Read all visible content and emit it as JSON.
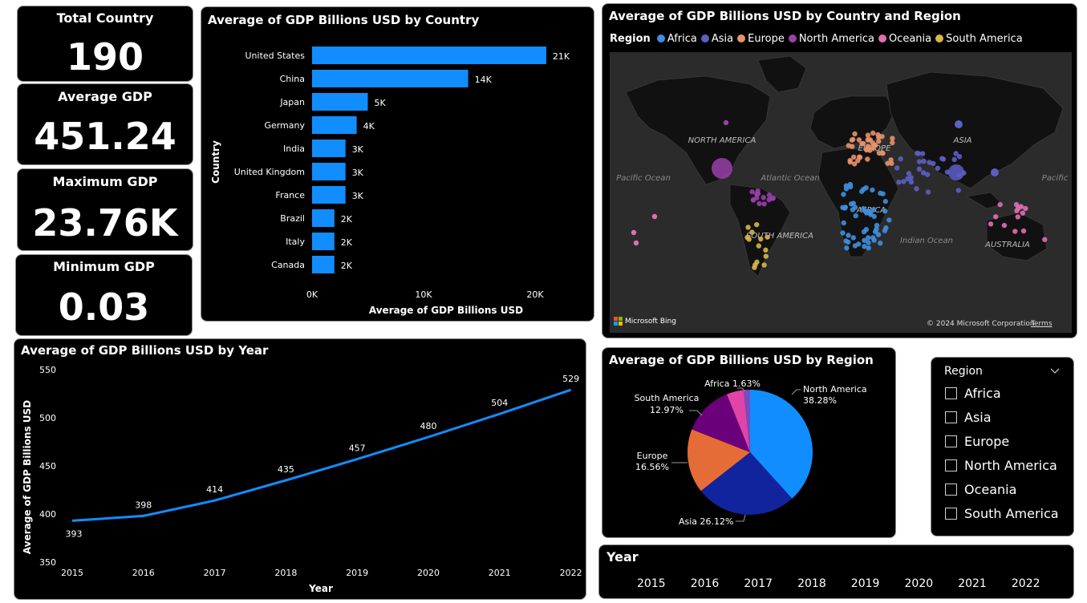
{
  "cards": [
    {
      "title": "Total Country",
      "value": "190"
    },
    {
      "title": "Average GDP",
      "value": "451.24"
    },
    {
      "title": "Maximum GDP",
      "value": "23.76K"
    },
    {
      "title": "Minimum GDP",
      "value": "0.03"
    }
  ],
  "bar_visual": {
    "title": "Average of GDP Billions USD by Country"
  },
  "map_visual": {
    "title": "Average of GDP Billions USD by Country and Region",
    "legend_title": "Region",
    "legend": [
      {
        "name": "Africa",
        "color": "#3f8fdf"
      },
      {
        "name": "Asia",
        "color": "#5c5fc4"
      },
      {
        "name": "Europe",
        "color": "#e8916a"
      },
      {
        "name": "North America",
        "color": "#9a3fa8"
      },
      {
        "name": "Oceania",
        "color": "#e06fb0"
      },
      {
        "name": "South America",
        "color": "#d9b54a"
      }
    ],
    "labels": {
      "north_america": "NORTH AMERICA",
      "south_america": "SOUTH AMERICA",
      "asia": "ASIA",
      "australia": "AUSTRALIA",
      "africa": "AFRICA",
      "europe": "EUROPE",
      "pacific_left": "Pacific Ocean",
      "pacific_right": "Pacific",
      "atlantic": "Atlantic Ocean",
      "indian": "Indian Ocean"
    },
    "bing": "Microsoft Bing",
    "copyright": "© 2024 Microsoft Corporation",
    "terms": "Terms"
  },
  "line_visual": {
    "title": "Average of GDP Billions USD by Year"
  },
  "pie_visual": {
    "title": "Average of GDP Billions USD by Region"
  },
  "region_slicer": {
    "title": "Region",
    "items": [
      "Africa",
      "Asia",
      "Europe",
      "North America",
      "Oceania",
      "South America"
    ]
  },
  "year_slicer": {
    "title": "Year",
    "items": [
      "2015",
      "2016",
      "2017",
      "2018",
      "2019",
      "2020",
      "2021",
      "2022"
    ]
  },
  "chart_data": [
    {
      "type": "bar",
      "orientation": "horizontal",
      "title": "Average of GDP Billions USD by Country",
      "ylabel": "Country",
      "xlabel": "Average of GDP Billions USD",
      "categories": [
        "United States",
        "China",
        "Japan",
        "Germany",
        "India",
        "United Kingdom",
        "France",
        "Brazil",
        "Italy",
        "Canada"
      ],
      "values": [
        21000,
        14000,
        5000,
        4000,
        3000,
        3000,
        3000,
        2000,
        2000,
        2000
      ],
      "data_labels": [
        "21K",
        "14K",
        "5K",
        "4K",
        "3K",
        "3K",
        "3K",
        "2K",
        "2K",
        "2K"
      ],
      "xticks": [
        "0K",
        "10K",
        "20K"
      ],
      "xlim": [
        0,
        21000
      ],
      "color": "#118dff"
    },
    {
      "type": "line",
      "title": "Average of GDP Billions USD by Year",
      "xlabel": "Year",
      "ylabel": "Average of GDP Billions USD",
      "x": [
        "2015",
        "2016",
        "2017",
        "2018",
        "2019",
        "2020",
        "2021",
        "2022"
      ],
      "values": [
        393,
        398,
        414,
        435,
        457,
        480,
        504,
        529
      ],
      "yticks": [
        "350",
        "400",
        "450",
        "500",
        "550"
      ],
      "ylim": [
        350,
        550
      ],
      "color": "#118dff"
    },
    {
      "type": "pie",
      "title": "Average of GDP Billions USD by Region",
      "slices": [
        {
          "label": "North America",
          "value": 38.28,
          "display": "38.28%",
          "color": "#118dff"
        },
        {
          "label": "Asia",
          "value": 26.12,
          "display": "26.12%",
          "color": "#12239e"
        },
        {
          "label": "Europe",
          "value": 16.56,
          "display": "16.56%",
          "color": "#e66c37"
        },
        {
          "label": "South America",
          "value": 12.97,
          "display": "12.97%",
          "color": "#6b007b"
        },
        {
          "label": "Oceania",
          "value": 4.44,
          "display": "",
          "color": "#e044a7"
        },
        {
          "label": "Africa",
          "value": 1.63,
          "display": "1.63%",
          "color": "#744ec2"
        }
      ]
    }
  ]
}
